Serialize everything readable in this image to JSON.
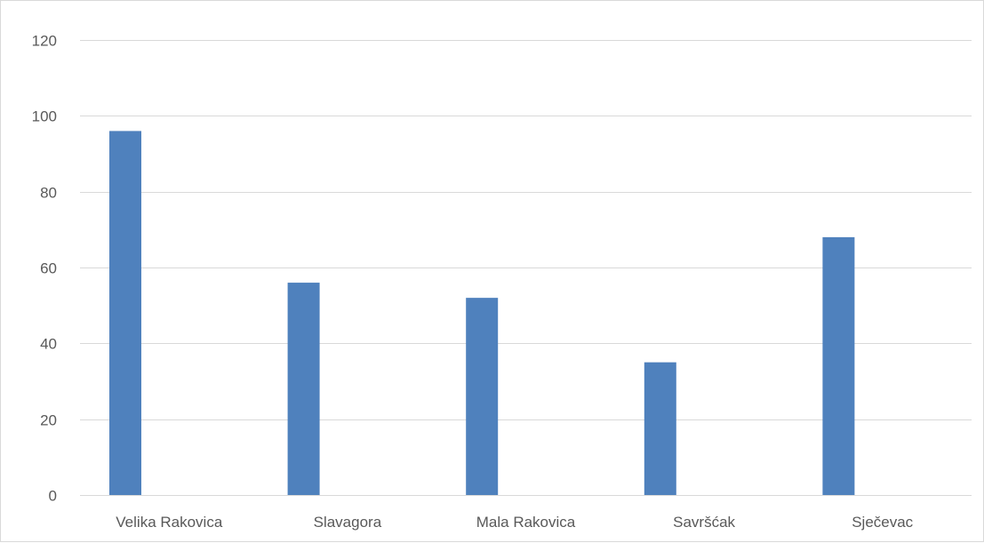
{
  "chart_data": {
    "type": "bar",
    "title": "",
    "xlabel": "",
    "ylabel": "",
    "categories": [
      "Velika Rakovica",
      "Slavagora",
      "Mala Rakovica",
      "Savršćak",
      "Sječevac"
    ],
    "values": [
      96,
      56,
      52,
      35,
      68
    ],
    "ylim": [
      0,
      120
    ],
    "yticks": [
      0,
      20,
      40,
      60,
      80,
      100,
      120
    ],
    "grid": true,
    "legend": "none",
    "bar_color": "#4f81bd"
  }
}
